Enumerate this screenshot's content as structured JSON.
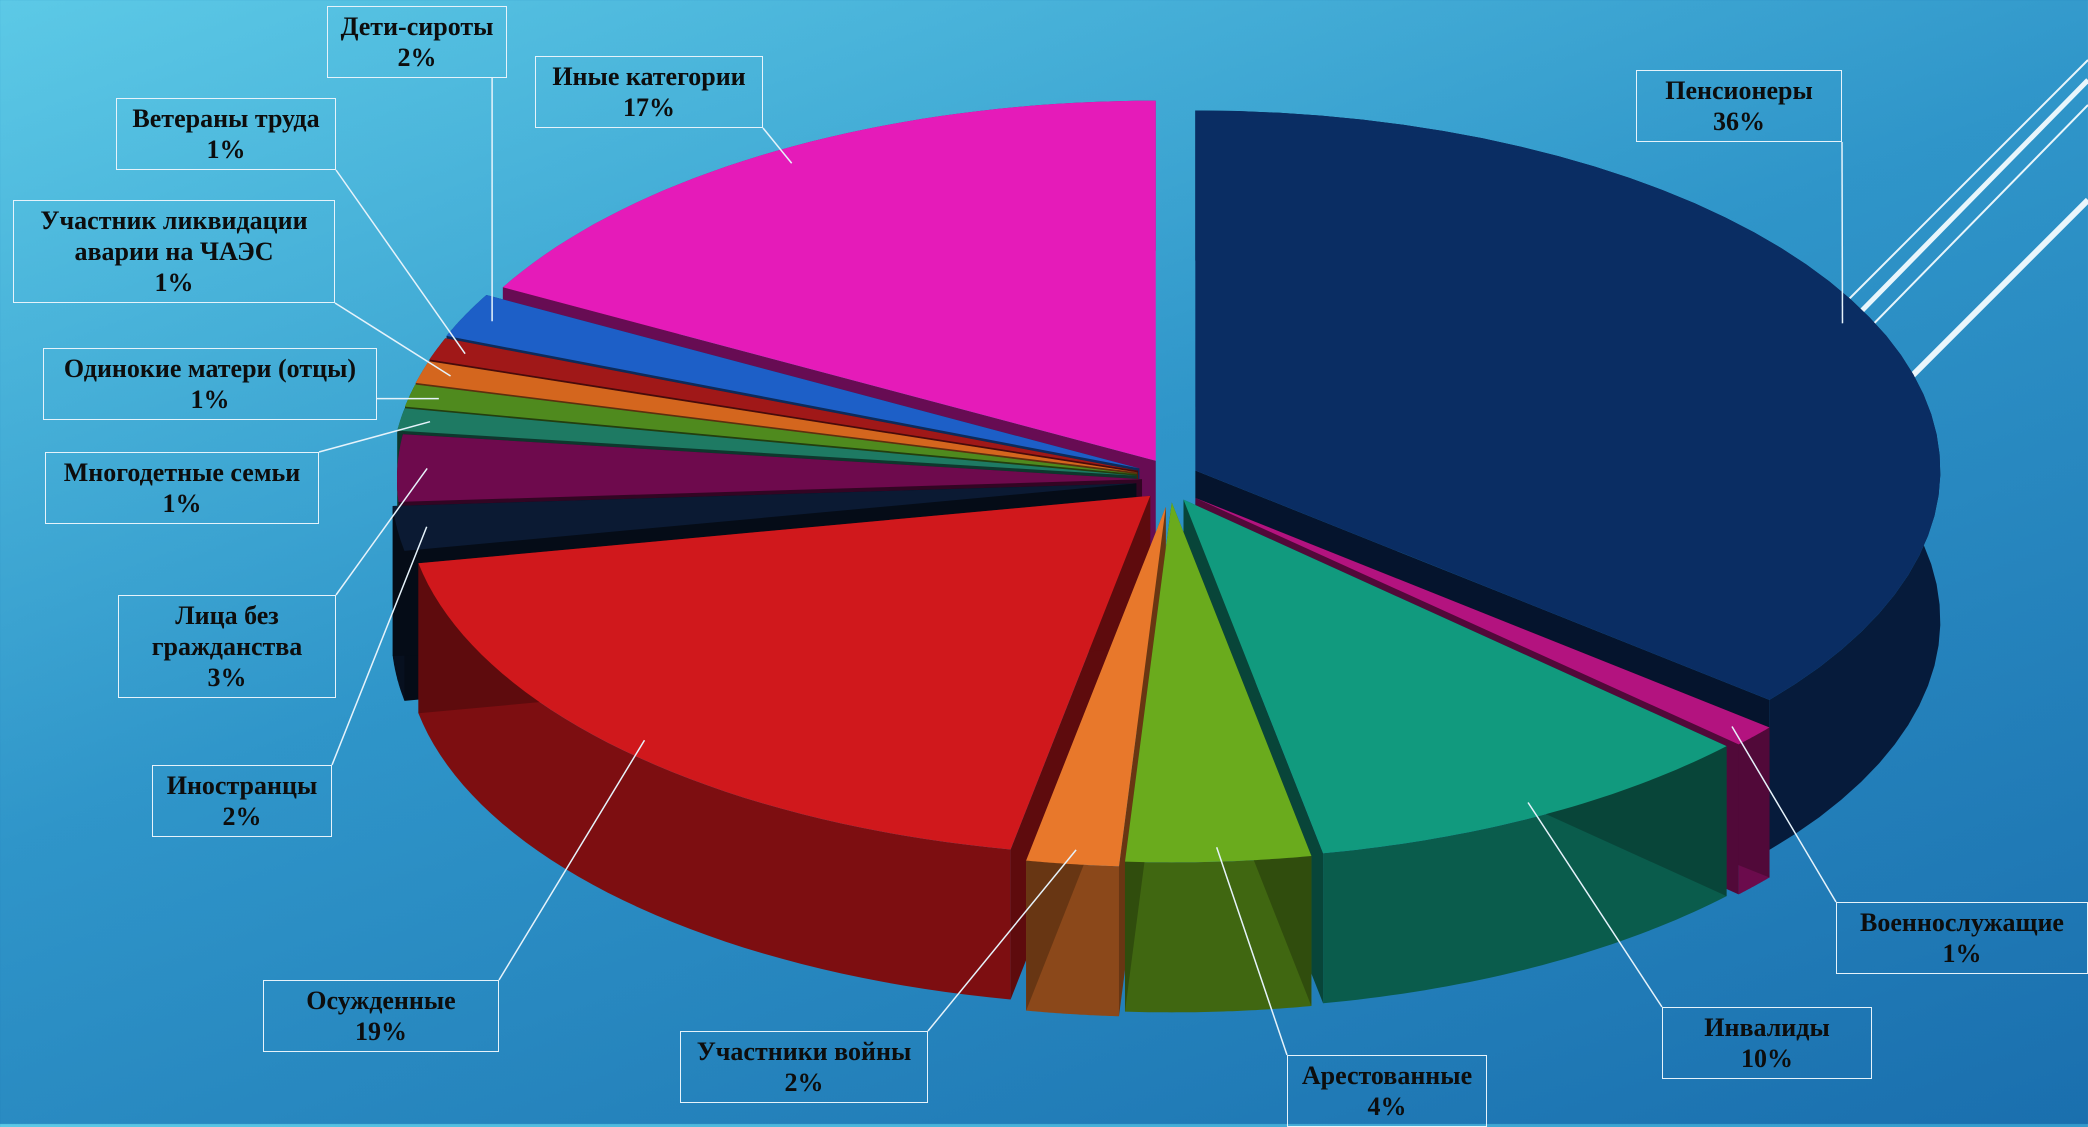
{
  "chart_data": {
    "type": "pie",
    "title": "",
    "slices": [
      {
        "label": "Пенсионеры",
        "value": 36,
        "value_label": "36%",
        "color": "#0a2d63"
      },
      {
        "label": "Военнослужащие",
        "value": 1,
        "value_label": "1%",
        "color": "#b3137f"
      },
      {
        "label": "Инвалиды",
        "value": 10,
        "value_label": "10%",
        "color": "#119a7e"
      },
      {
        "label": "Арестованные",
        "value": 4,
        "value_label": "4%",
        "color": "#6aab1d"
      },
      {
        "label": "Участники войны",
        "value": 2,
        "value_label": "2%",
        "color": "#e8782b"
      },
      {
        "label": "Осужденные",
        "value": 19,
        "value_label": "19%",
        "color": "#d0181c"
      },
      {
        "label": "Иностранцы",
        "value": 2,
        "value_label": "2%",
        "color": "#0b1a33"
      },
      {
        "label": "Лица без гражданства",
        "value": 3,
        "value_label": "3%",
        "color": "#6e0a4d"
      },
      {
        "label": "Многодетные семьи",
        "value": 1,
        "value_label": "1%",
        "color": "#1e7a63"
      },
      {
        "label": "Одинокие матери (отцы)",
        "value": 1,
        "value_label": "1%",
        "color": "#4f8a1e"
      },
      {
        "label": "Участник ликвидации аварии на ЧАЭС",
        "value": 1,
        "value_label": "1%",
        "color": "#d4661e"
      },
      {
        "label": "Ветераны труда",
        "value": 1,
        "value_label": "1%",
        "color": "#a01818"
      },
      {
        "label": "Дети-сироты",
        "value": 2,
        "value_label": "2%",
        "color": "#1d5fc7"
      },
      {
        "label": "Иные категории",
        "value": 17,
        "value_label": "17%",
        "color": "#e51bb9"
      }
    ]
  },
  "labels": {
    "pensioners": {
      "name": "Пенсионеры",
      "pct": "36%"
    },
    "military": {
      "name": "Военнослужащие",
      "pct": "1%"
    },
    "disabled": {
      "name": "Инвалиды",
      "pct": "10%"
    },
    "arrested": {
      "name": "Арестованные",
      "pct": "4%"
    },
    "war_participants": {
      "name": "Участники войны",
      "pct": "2%"
    },
    "convicted": {
      "name": "Осужденные",
      "pct": "19%"
    },
    "foreigners": {
      "name": "Иностранцы",
      "pct": "2%"
    },
    "stateless": {
      "name1": "Лица без",
      "name2": "гражданства",
      "pct": "3%"
    },
    "large_families": {
      "name": "Многодетные семьи",
      "pct": "1%"
    },
    "single_parents": {
      "name": "Одинокие матери (отцы)",
      "pct": "1%"
    },
    "chernobyl": {
      "name1": "Участник ликвидации",
      "name2": "аварии на ЧАЭС",
      "pct": "1%"
    },
    "labor_veterans": {
      "name": "Ветераны труда",
      "pct": "1%"
    },
    "orphans": {
      "name": "Дети-сироты",
      "pct": "2%"
    },
    "other": {
      "name": "Иные категории",
      "pct": "17%"
    }
  }
}
